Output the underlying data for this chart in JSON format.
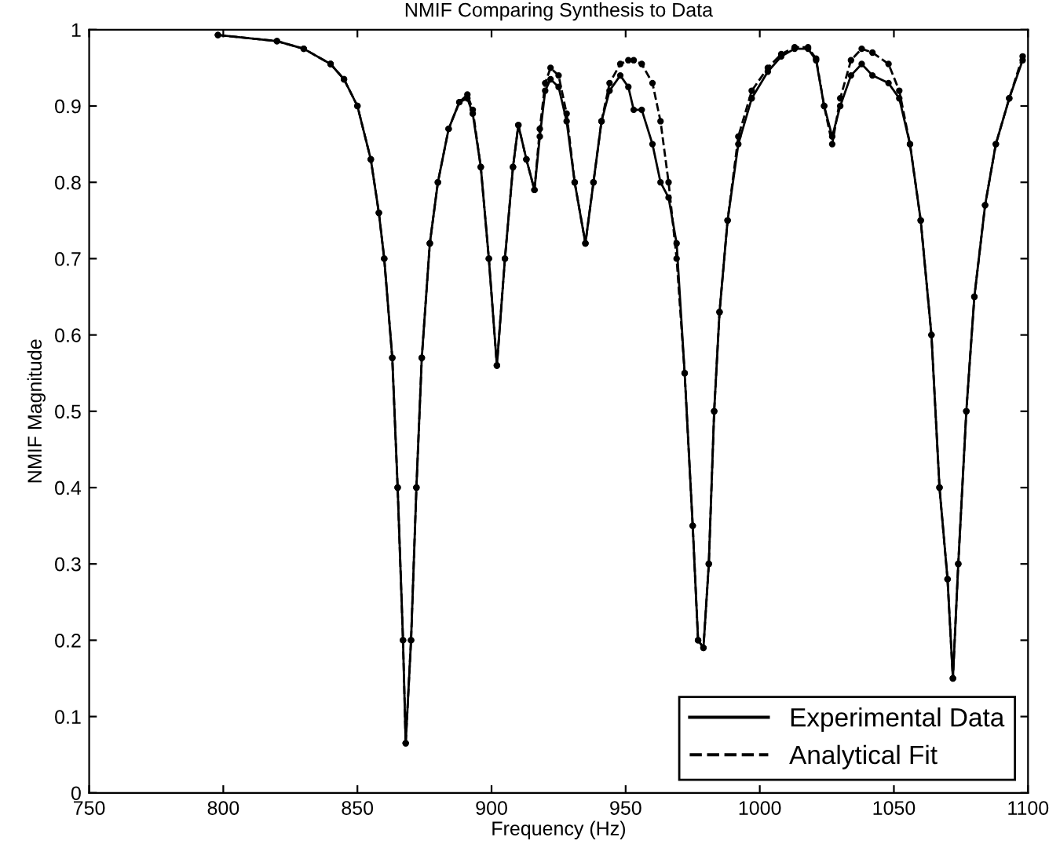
{
  "chart_data": {
    "type": "line",
    "title": "NMIF Comparing Synthesis to Data",
    "xlabel": "Frequency (Hz)",
    "ylabel": "NMIF Magnitude",
    "xlim": [
      750,
      1100
    ],
    "xticks": [
      750,
      800,
      850,
      900,
      950,
      1000,
      1050,
      1100
    ],
    "ylim": [
      0,
      1
    ],
    "yticks": [
      0,
      0.1,
      0.2,
      0.3,
      0.4,
      0.5,
      0.6,
      0.7,
      0.8,
      0.9,
      1
    ],
    "grid": false,
    "legend": "bottom right",
    "marker": "circle",
    "series": [
      {
        "name": "Experimental Data",
        "color": "#000000",
        "line_style": "solid",
        "x": [
          798,
          820,
          830,
          840,
          845,
          850,
          855,
          858,
          860,
          863,
          865,
          867,
          868,
          870,
          872,
          874,
          877,
          880,
          884,
          888,
          891,
          893,
          896,
          899,
          902,
          905,
          908,
          910,
          913,
          916,
          918,
          920,
          922,
          925,
          928,
          931,
          935,
          938,
          941,
          944,
          948,
          951,
          953,
          956,
          960,
          963,
          966,
          969,
          972,
          975,
          977,
          979,
          981,
          983,
          985,
          988,
          992,
          997,
          1003,
          1008,
          1013,
          1018,
          1021,
          1024,
          1027,
          1030,
          1034,
          1038,
          1042,
          1048,
          1052,
          1056,
          1060,
          1064,
          1067,
          1070,
          1072,
          1074,
          1077,
          1080,
          1084,
          1088,
          1093,
          1098
        ],
        "values": [
          0.993,
          0.985,
          0.975,
          0.955,
          0.935,
          0.9,
          0.83,
          0.76,
          0.7,
          0.57,
          0.4,
          0.2,
          0.065,
          0.2,
          0.4,
          0.57,
          0.72,
          0.8,
          0.87,
          0.905,
          0.91,
          0.89,
          0.82,
          0.7,
          0.56,
          0.7,
          0.82,
          0.875,
          0.83,
          0.79,
          0.86,
          0.92,
          0.935,
          0.925,
          0.88,
          0.8,
          0.72,
          0.8,
          0.88,
          0.92,
          0.94,
          0.925,
          0.895,
          0.895,
          0.85,
          0.8,
          0.78,
          0.72,
          0.55,
          0.35,
          0.2,
          0.19,
          0.3,
          0.5,
          0.63,
          0.75,
          0.85,
          0.91,
          0.945,
          0.965,
          0.975,
          0.975,
          0.96,
          0.9,
          0.86,
          0.9,
          0.94,
          0.955,
          0.94,
          0.93,
          0.91,
          0.85,
          0.75,
          0.6,
          0.4,
          0.28,
          0.15,
          0.3,
          0.5,
          0.65,
          0.77,
          0.85,
          0.91,
          0.96
        ]
      },
      {
        "name": "Analytical Fit",
        "color": "#000000",
        "line_style": "dashed",
        "x": [
          798,
          820,
          830,
          840,
          845,
          850,
          855,
          858,
          860,
          863,
          865,
          867,
          868,
          870,
          872,
          874,
          877,
          880,
          884,
          888,
          891,
          893,
          896,
          899,
          902,
          905,
          908,
          910,
          913,
          916,
          918,
          920,
          922,
          925,
          928,
          931,
          935,
          938,
          941,
          944,
          948,
          951,
          953,
          956,
          960,
          963,
          966,
          969,
          972,
          975,
          977,
          979,
          981,
          983,
          985,
          988,
          992,
          997,
          1003,
          1008,
          1013,
          1018,
          1021,
          1024,
          1027,
          1030,
          1034,
          1038,
          1042,
          1048,
          1052,
          1056,
          1060,
          1064,
          1067,
          1070,
          1072,
          1074,
          1077,
          1080,
          1084,
          1088,
          1093,
          1098
        ],
        "values": [
          0.993,
          0.985,
          0.975,
          0.955,
          0.935,
          0.9,
          0.83,
          0.76,
          0.7,
          0.57,
          0.4,
          0.2,
          0.065,
          0.2,
          0.4,
          0.57,
          0.72,
          0.8,
          0.87,
          0.905,
          0.915,
          0.895,
          0.82,
          0.7,
          0.56,
          0.7,
          0.82,
          0.875,
          0.83,
          0.79,
          0.87,
          0.93,
          0.95,
          0.94,
          0.89,
          0.8,
          0.72,
          0.8,
          0.88,
          0.93,
          0.955,
          0.96,
          0.96,
          0.955,
          0.93,
          0.88,
          0.8,
          0.7,
          0.55,
          0.35,
          0.2,
          0.19,
          0.3,
          0.5,
          0.63,
          0.75,
          0.86,
          0.92,
          0.95,
          0.968,
          0.977,
          0.977,
          0.962,
          0.9,
          0.85,
          0.91,
          0.96,
          0.975,
          0.97,
          0.955,
          0.92,
          0.85,
          0.75,
          0.6,
          0.4,
          0.28,
          0.15,
          0.3,
          0.5,
          0.65,
          0.77,
          0.85,
          0.91,
          0.965
        ]
      }
    ]
  }
}
